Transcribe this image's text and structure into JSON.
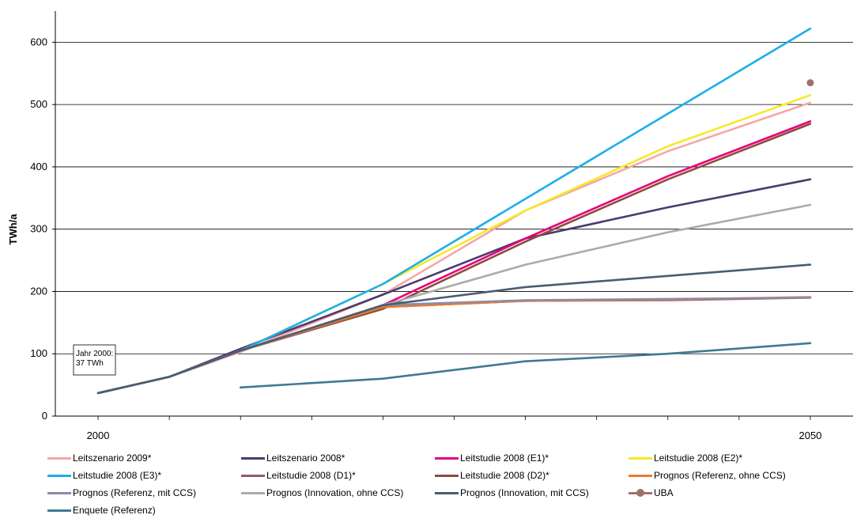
{
  "chart_data": {
    "type": "line",
    "title": "",
    "xlabel": "",
    "ylabel": "TWh/a",
    "ylim": [
      0,
      650
    ],
    "xlim": [
      1997,
      2053
    ],
    "yticks": [
      0,
      100,
      200,
      300,
      400,
      500,
      600
    ],
    "xtick_labels": [
      {
        "x": 2000,
        "label": "2000"
      },
      {
        "x": 2050,
        "label": "2050"
      }
    ],
    "grid": "horizontal",
    "legend_position": "bottom",
    "annotation": {
      "lines": [
        "Jahr 2000:",
        "37 TWh"
      ],
      "x": 2000,
      "y": 100
    },
    "series": [
      {
        "name": "Leitszenario 2009*",
        "color": "#f4a7a8",
        "points": [
          [
            2000,
            37
          ],
          [
            2005,
            63
          ],
          [
            2010,
            103
          ],
          [
            2020,
            195
          ],
          [
            2030,
            330
          ],
          [
            2040,
            425
          ],
          [
            2050,
            503
          ]
        ]
      },
      {
        "name": "Leitszenario 2008*",
        "color": "#4b3b6e",
        "points": [
          [
            2000,
            37
          ],
          [
            2005,
            63
          ],
          [
            2010,
            108
          ],
          [
            2020,
            195
          ],
          [
            2030,
            285
          ],
          [
            2040,
            335
          ],
          [
            2050,
            380
          ]
        ]
      },
      {
        "name": "Leitstudie 2008 (E1)*",
        "color": "#e6007e",
        "points": [
          [
            2000,
            37
          ],
          [
            2005,
            63
          ],
          [
            2010,
            105
          ],
          [
            2020,
            178
          ],
          [
            2030,
            285
          ],
          [
            2040,
            385
          ],
          [
            2050,
            473
          ]
        ]
      },
      {
        "name": "Leitstudie 2008 (E2)*",
        "color": "#f5e92a",
        "points": [
          [
            2000,
            37
          ],
          [
            2005,
            63
          ],
          [
            2010,
            105
          ],
          [
            2020,
            212
          ],
          [
            2030,
            330
          ],
          [
            2040,
            433
          ],
          [
            2050,
            515
          ]
        ]
      },
      {
        "name": "Leitstudie 2008 (E3)*",
        "color": "#1eaee8",
        "points": [
          [
            2000,
            37
          ],
          [
            2005,
            63
          ],
          [
            2010,
            105
          ],
          [
            2020,
            212
          ],
          [
            2050,
            622
          ]
        ]
      },
      {
        "name": "Leitstudie 2008 (D1)*",
        "color": "#93586f",
        "points": [
          [
            2000,
            37
          ],
          [
            2005,
            63
          ],
          [
            2010,
            105
          ],
          [
            2020,
            175
          ],
          [
            2030,
            185
          ],
          [
            2040,
            186
          ],
          [
            2050,
            190
          ]
        ]
      },
      {
        "name": "Leitstudie 2008 (D2)*",
        "color": "#8e4c3c",
        "points": [
          [
            2000,
            37
          ],
          [
            2005,
            63
          ],
          [
            2010,
            105
          ],
          [
            2020,
            172
          ],
          [
            2030,
            280
          ],
          [
            2040,
            380
          ],
          [
            2050,
            469
          ]
        ]
      },
      {
        "name": "Prognos (Referenz, ohne CCS)",
        "color": "#ec7a2a",
        "points": [
          [
            2000,
            37
          ],
          [
            2005,
            63
          ],
          [
            2010,
            105
          ],
          [
            2020,
            175
          ],
          [
            2030,
            185
          ],
          [
            2040,
            187
          ],
          [
            2050,
            191
          ]
        ]
      },
      {
        "name": "Prognos (Referenz, mit CCS)",
        "color": "#8e8aa8",
        "points": [
          [
            2000,
            37
          ],
          [
            2005,
            63
          ],
          [
            2010,
            105
          ],
          [
            2020,
            178
          ],
          [
            2030,
            186
          ],
          [
            2040,
            188
          ],
          [
            2050,
            190
          ]
        ]
      },
      {
        "name": "Prognos (Innovation, ohne CCS)",
        "color": "#ababab",
        "points": [
          [
            2000,
            37
          ],
          [
            2005,
            63
          ],
          [
            2010,
            105
          ],
          [
            2020,
            178
          ],
          [
            2030,
            243
          ],
          [
            2040,
            295
          ],
          [
            2050,
            339
          ]
        ]
      },
      {
        "name": "Prognos (Innovation, mit CCS)",
        "color": "#4a5d72",
        "points": [
          [
            2000,
            37
          ],
          [
            2005,
            63
          ],
          [
            2010,
            105
          ],
          [
            2020,
            178
          ],
          [
            2030,
            207
          ],
          [
            2040,
            225
          ],
          [
            2050,
            243
          ]
        ]
      },
      {
        "name": "UBA",
        "color": "#a0706e",
        "marker": true,
        "points": [
          [
            2050,
            535
          ]
        ]
      },
      {
        "name": "Enquete (Referenz)",
        "color": "#3e7a92",
        "points": [
          [
            2010,
            46
          ],
          [
            2020,
            60
          ],
          [
            2030,
            88
          ],
          [
            2040,
            100
          ],
          [
            2050,
            117
          ]
        ]
      }
    ]
  }
}
